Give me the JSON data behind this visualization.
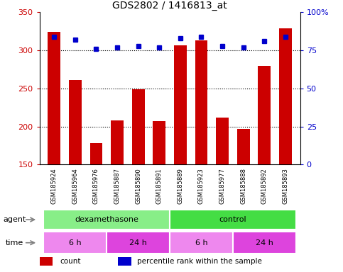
{
  "title": "GDS2802 / 1416813_at",
  "samples": [
    "GSM185924",
    "GSM185964",
    "GSM185976",
    "GSM185887",
    "GSM185890",
    "GSM185891",
    "GSM185889",
    "GSM185923",
    "GSM185977",
    "GSM185888",
    "GSM185892",
    "GSM185893"
  ],
  "counts": [
    324,
    261,
    178,
    208,
    249,
    207,
    307,
    313,
    212,
    197,
    280,
    329
  ],
  "percentile_ranks": [
    84,
    82,
    76,
    77,
    78,
    77,
    83,
    84,
    78,
    77,
    81,
    84
  ],
  "ylim_left": [
    150,
    350
  ],
  "ylim_right": [
    0,
    100
  ],
  "yticks_left": [
    150,
    200,
    250,
    300,
    350
  ],
  "yticks_right": [
    0,
    25,
    50,
    75,
    100
  ],
  "ytick_labels_right": [
    "0",
    "25",
    "50",
    "75",
    "100%"
  ],
  "bar_color": "#cc0000",
  "dot_color": "#0000cc",
  "agent_groups": [
    {
      "label": "dexamethasone",
      "start": 0,
      "end": 6,
      "color": "#88ee88"
    },
    {
      "label": "control",
      "start": 6,
      "end": 12,
      "color": "#44dd44"
    }
  ],
  "time_groups": [
    {
      "label": "6 h",
      "start": 0,
      "end": 3,
      "color": "#ee88ee"
    },
    {
      "label": "24 h",
      "start": 3,
      "end": 6,
      "color": "#dd44dd"
    },
    {
      "label": "6 h",
      "start": 6,
      "end": 9,
      "color": "#ee88ee"
    },
    {
      "label": "24 h",
      "start": 9,
      "end": 12,
      "color": "#dd44dd"
    }
  ],
  "legend_count_color": "#cc0000",
  "legend_dot_color": "#0000cc",
  "tick_label_color_left": "#cc0000",
  "tick_label_color_right": "#0000cc",
  "grid_yticks": [
    200,
    250,
    300
  ],
  "bar_bottom": 150,
  "background_color": "#ffffff",
  "agent_row_label": "agent",
  "time_row_label": "time",
  "sample_bg_color": "#cccccc",
  "sample_divider_color": "#ffffff"
}
